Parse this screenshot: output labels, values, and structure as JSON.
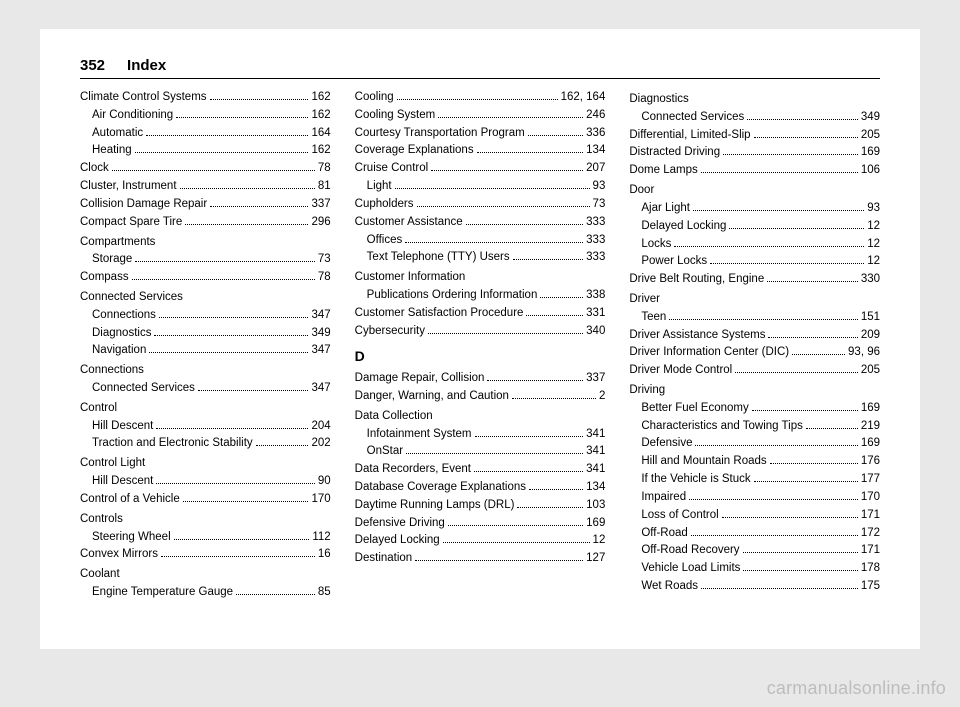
{
  "header": {
    "page_number": "352",
    "title": "Index"
  },
  "watermark": "carmanualsonline.info",
  "columns": [
    {
      "entries": [
        {
          "type": "entry",
          "label": "Climate Control Systems",
          "page": "162"
        },
        {
          "type": "sub",
          "label": "Air Conditioning",
          "page": "162"
        },
        {
          "type": "sub",
          "label": "Automatic",
          "page": "164"
        },
        {
          "type": "sub",
          "label": "Heating",
          "page": "162"
        },
        {
          "type": "entry",
          "label": "Clock",
          "page": "78"
        },
        {
          "type": "entry",
          "label": "Cluster, Instrument",
          "page": "81"
        },
        {
          "type": "entry",
          "label": "Collision Damage Repair",
          "page": "337"
        },
        {
          "type": "entry",
          "label": "Compact Spare Tire",
          "page": "296"
        },
        {
          "type": "heading",
          "label": "Compartments"
        },
        {
          "type": "sub",
          "label": "Storage",
          "page": "73"
        },
        {
          "type": "entry",
          "label": "Compass",
          "page": "78"
        },
        {
          "type": "heading",
          "label": "Connected Services"
        },
        {
          "type": "sub",
          "label": "Connections",
          "page": "347"
        },
        {
          "type": "sub",
          "label": "Diagnostics",
          "page": "349"
        },
        {
          "type": "sub",
          "label": "Navigation",
          "page": "347"
        },
        {
          "type": "heading",
          "label": "Connections"
        },
        {
          "type": "sub",
          "label": "Connected Services",
          "page": "347"
        },
        {
          "type": "heading",
          "label": "Control"
        },
        {
          "type": "sub",
          "label": "Hill Descent",
          "page": "204"
        },
        {
          "type": "sub",
          "label": "Traction and Electronic Stability",
          "page": "202"
        },
        {
          "type": "heading",
          "label": "Control Light"
        },
        {
          "type": "sub",
          "label": "Hill Descent",
          "page": "90"
        },
        {
          "type": "entry",
          "label": "Control of a Vehicle",
          "page": "170"
        },
        {
          "type": "heading",
          "label": "Controls"
        },
        {
          "type": "sub",
          "label": "Steering Wheel",
          "page": "112"
        },
        {
          "type": "entry",
          "label": "Convex Mirrors",
          "page": "16"
        },
        {
          "type": "heading",
          "label": "Coolant"
        },
        {
          "type": "sub",
          "label": "Engine Temperature Gauge",
          "page": "85"
        }
      ]
    },
    {
      "entries": [
        {
          "type": "entry",
          "label": "Cooling",
          "page": "162, 164"
        },
        {
          "type": "entry",
          "label": "Cooling System",
          "page": "246"
        },
        {
          "type": "entry",
          "label": "Courtesy Transportation Program",
          "page": "336"
        },
        {
          "type": "entry",
          "label": "Coverage Explanations",
          "page": "134"
        },
        {
          "type": "entry",
          "label": "Cruise Control",
          "page": "207"
        },
        {
          "type": "sub",
          "label": "Light",
          "page": "93"
        },
        {
          "type": "entry",
          "label": "Cupholders",
          "page": "73"
        },
        {
          "type": "entry",
          "label": "Customer Assistance",
          "page": "333"
        },
        {
          "type": "sub",
          "label": "Offices",
          "page": "333"
        },
        {
          "type": "sub",
          "label": "Text Telephone (TTY) Users",
          "page": "333"
        },
        {
          "type": "heading",
          "label": "Customer Information"
        },
        {
          "type": "sub",
          "label": "Publications Ordering Information",
          "page": "338"
        },
        {
          "type": "entry",
          "label": "Customer Satisfaction Procedure",
          "page": "331"
        },
        {
          "type": "entry",
          "label": "Cybersecurity",
          "page": "340"
        },
        {
          "type": "letter",
          "label": "D"
        },
        {
          "type": "entry",
          "label": "Damage Repair, Collision",
          "page": "337"
        },
        {
          "type": "entry",
          "label": "Danger, Warning, and Caution",
          "page": "2"
        },
        {
          "type": "heading",
          "label": "Data Collection"
        },
        {
          "type": "sub",
          "label": "Infotainment System",
          "page": "341"
        },
        {
          "type": "sub",
          "label": "OnStar",
          "page": "341"
        },
        {
          "type": "entry",
          "label": "Data Recorders, Event",
          "page": "341"
        },
        {
          "type": "entry",
          "label": "Database Coverage Explanations",
          "page": "134"
        },
        {
          "type": "entry",
          "label": "Daytime Running Lamps (DRL)",
          "page": "103"
        },
        {
          "type": "entry",
          "label": "Defensive Driving",
          "page": "169"
        },
        {
          "type": "entry",
          "label": "Delayed Locking",
          "page": "12"
        },
        {
          "type": "entry",
          "label": "Destination",
          "page": "127"
        }
      ]
    },
    {
      "entries": [
        {
          "type": "heading",
          "label": "Diagnostics"
        },
        {
          "type": "sub",
          "label": "Connected Services",
          "page": "349"
        },
        {
          "type": "entry",
          "label": "Differential, Limited-Slip",
          "page": "205"
        },
        {
          "type": "entry",
          "label": "Distracted Driving",
          "page": "169"
        },
        {
          "type": "entry",
          "label": "Dome Lamps",
          "page": "106"
        },
        {
          "type": "heading",
          "label": "Door"
        },
        {
          "type": "sub",
          "label": "Ajar Light",
          "page": "93"
        },
        {
          "type": "sub",
          "label": "Delayed Locking",
          "page": "12"
        },
        {
          "type": "sub",
          "label": "Locks",
          "page": "12"
        },
        {
          "type": "sub",
          "label": "Power Locks",
          "page": "12"
        },
        {
          "type": "entry",
          "label": "Drive Belt Routing, Engine",
          "page": "330"
        },
        {
          "type": "heading",
          "label": "Driver"
        },
        {
          "type": "sub",
          "label": "Teen",
          "page": "151"
        },
        {
          "type": "entry",
          "label": "Driver Assistance Systems",
          "page": "209"
        },
        {
          "type": "entry",
          "label": "Driver Information Center (DIC)",
          "page": "93, 96"
        },
        {
          "type": "entry",
          "label": "Driver Mode Control",
          "page": "205"
        },
        {
          "type": "heading",
          "label": "Driving"
        },
        {
          "type": "sub",
          "label": "Better Fuel Economy",
          "page": "169"
        },
        {
          "type": "sub",
          "label": "Characteristics and Towing Tips",
          "page": "219"
        },
        {
          "type": "sub",
          "label": "Defensive",
          "page": "169"
        },
        {
          "type": "sub",
          "label": "Hill and Mountain Roads",
          "page": "176"
        },
        {
          "type": "sub",
          "label": "If the Vehicle is Stuck",
          "page": "177"
        },
        {
          "type": "sub",
          "label": "Impaired",
          "page": "170"
        },
        {
          "type": "sub",
          "label": "Loss of Control",
          "page": "171"
        },
        {
          "type": "sub",
          "label": "Off-Road",
          "page": "172"
        },
        {
          "type": "sub",
          "label": "Off-Road Recovery",
          "page": "171"
        },
        {
          "type": "sub",
          "label": "Vehicle Load Limits",
          "page": "178"
        },
        {
          "type": "sub",
          "label": "Wet Roads",
          "page": "175"
        }
      ]
    }
  ]
}
